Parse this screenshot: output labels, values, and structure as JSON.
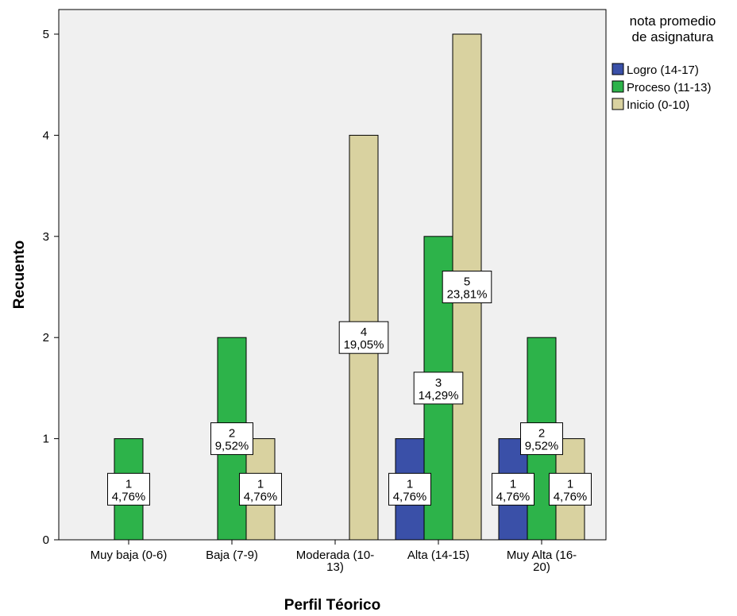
{
  "chart_data": {
    "type": "bar",
    "title": "",
    "xlabel": "Perfil Téorico",
    "ylabel": "Recuento",
    "ylim": [
      0,
      5
    ],
    "yticks": [
      "0",
      "1",
      "2",
      "3",
      "4",
      "5"
    ],
    "categories": [
      [
        "Muy baja (0-6)"
      ],
      [
        "Baja (7-9)"
      ],
      [
        "Moderada (10-",
        "13)"
      ],
      [
        "Alta (14-15)"
      ],
      [
        "Muy Alta (16-",
        "20)"
      ]
    ],
    "legend": {
      "title": [
        "nota promedio",
        "de asignatura"
      ],
      "placement": "right"
    },
    "series": [
      {
        "name": "Logro (14-17)",
        "color": "#3a50a8",
        "values": [
          0,
          0,
          0,
          1,
          1
        ],
        "labels": [
          null,
          null,
          null,
          [
            "1",
            "4,76%"
          ],
          [
            "1",
            "4,76%"
          ]
        ]
      },
      {
        "name": "Proceso (11-13)",
        "color": "#2db34a",
        "values": [
          1,
          2,
          0,
          3,
          2
        ],
        "labels": [
          [
            "1",
            "4,76%"
          ],
          [
            "2",
            "9,52%"
          ],
          null,
          [
            "3",
            "14,29%"
          ],
          [
            "2",
            "9,52%"
          ]
        ]
      },
      {
        "name": "Inicio (0-10)",
        "color": "#d9d2a0",
        "values": [
          0,
          1,
          4,
          5,
          1
        ],
        "labels": [
          null,
          [
            "1",
            "4,76%"
          ],
          [
            "4",
            "19,05%"
          ],
          [
            "5",
            "23,81%"
          ],
          [
            "1",
            "4,76%"
          ]
        ]
      }
    ],
    "grid": false,
    "plot_background": "#f0f0f0"
  }
}
